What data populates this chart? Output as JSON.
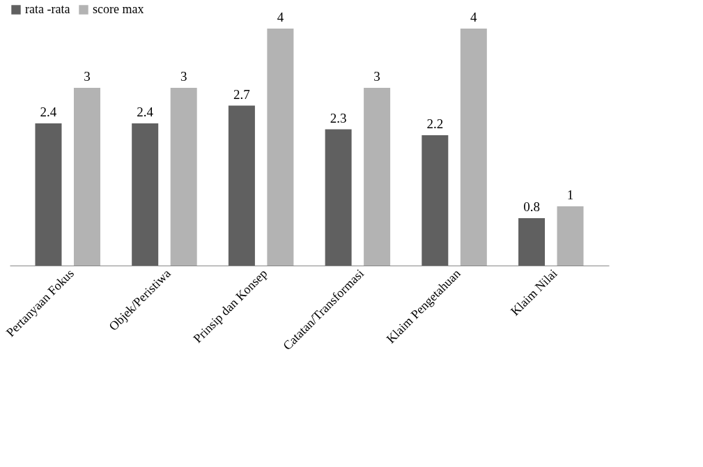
{
  "chart_data": {
    "type": "bar",
    "categories": [
      "Pertanyaan Fokus",
      "Objek/Peristiwa",
      "Prinsip dan Konsep",
      "Catatan/Transformasi",
      "Klaim Pengetahuan",
      "Klaim Nilai"
    ],
    "series": [
      {
        "name": "rata -rata",
        "color": "#606060",
        "values": [
          2.4,
          2.4,
          2.7,
          2.3,
          2.2,
          0.8
        ]
      },
      {
        "name": "score max",
        "color": "#b3b3b3",
        "values": [
          3,
          3,
          4,
          3,
          4,
          1
        ]
      }
    ],
    "data_labels": true,
    "legend": "top",
    "grid": false
  }
}
